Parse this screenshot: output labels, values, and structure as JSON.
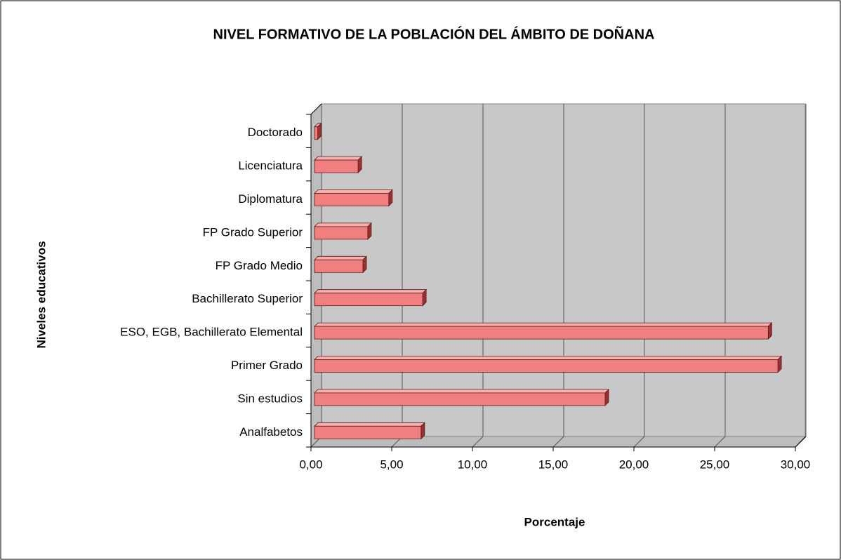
{
  "chart_data": {
    "type": "bar3d",
    "orientation": "horizontal",
    "title": "NIVEL FORMATIVO DE LA POBLACIÓN DEL ÁMBITO DE DOÑANA",
    "x_label": "Porcentaje",
    "y_label": "Niveles educativos",
    "categories": [
      "Doctorado",
      "Licenciatura",
      "Diplomatura",
      "FP Grado Superior",
      "FP Grado Medio",
      "Bachillerato Superior",
      "ESO, EGB, Bachillerato Elemental",
      "Primer Grado",
      "Sin estudios",
      "Analfabetos"
    ],
    "values": [
      0.2,
      2.7,
      4.6,
      3.3,
      3.0,
      6.7,
      28.1,
      28.7,
      18.0,
      6.6
    ],
    "color": "#f08080",
    "xlim": [
      0,
      30
    ],
    "xticks": [
      {
        "value": 0,
        "label": "0,00"
      },
      {
        "value": 5,
        "label": "5,00"
      },
      {
        "value": 10,
        "label": "10,00"
      },
      {
        "value": 15,
        "label": "15,00"
      },
      {
        "value": 20,
        "label": "20,00"
      },
      {
        "value": 25,
        "label": "25,00"
      },
      {
        "value": 30,
        "label": "30,00"
      }
    ],
    "grid": true
  }
}
